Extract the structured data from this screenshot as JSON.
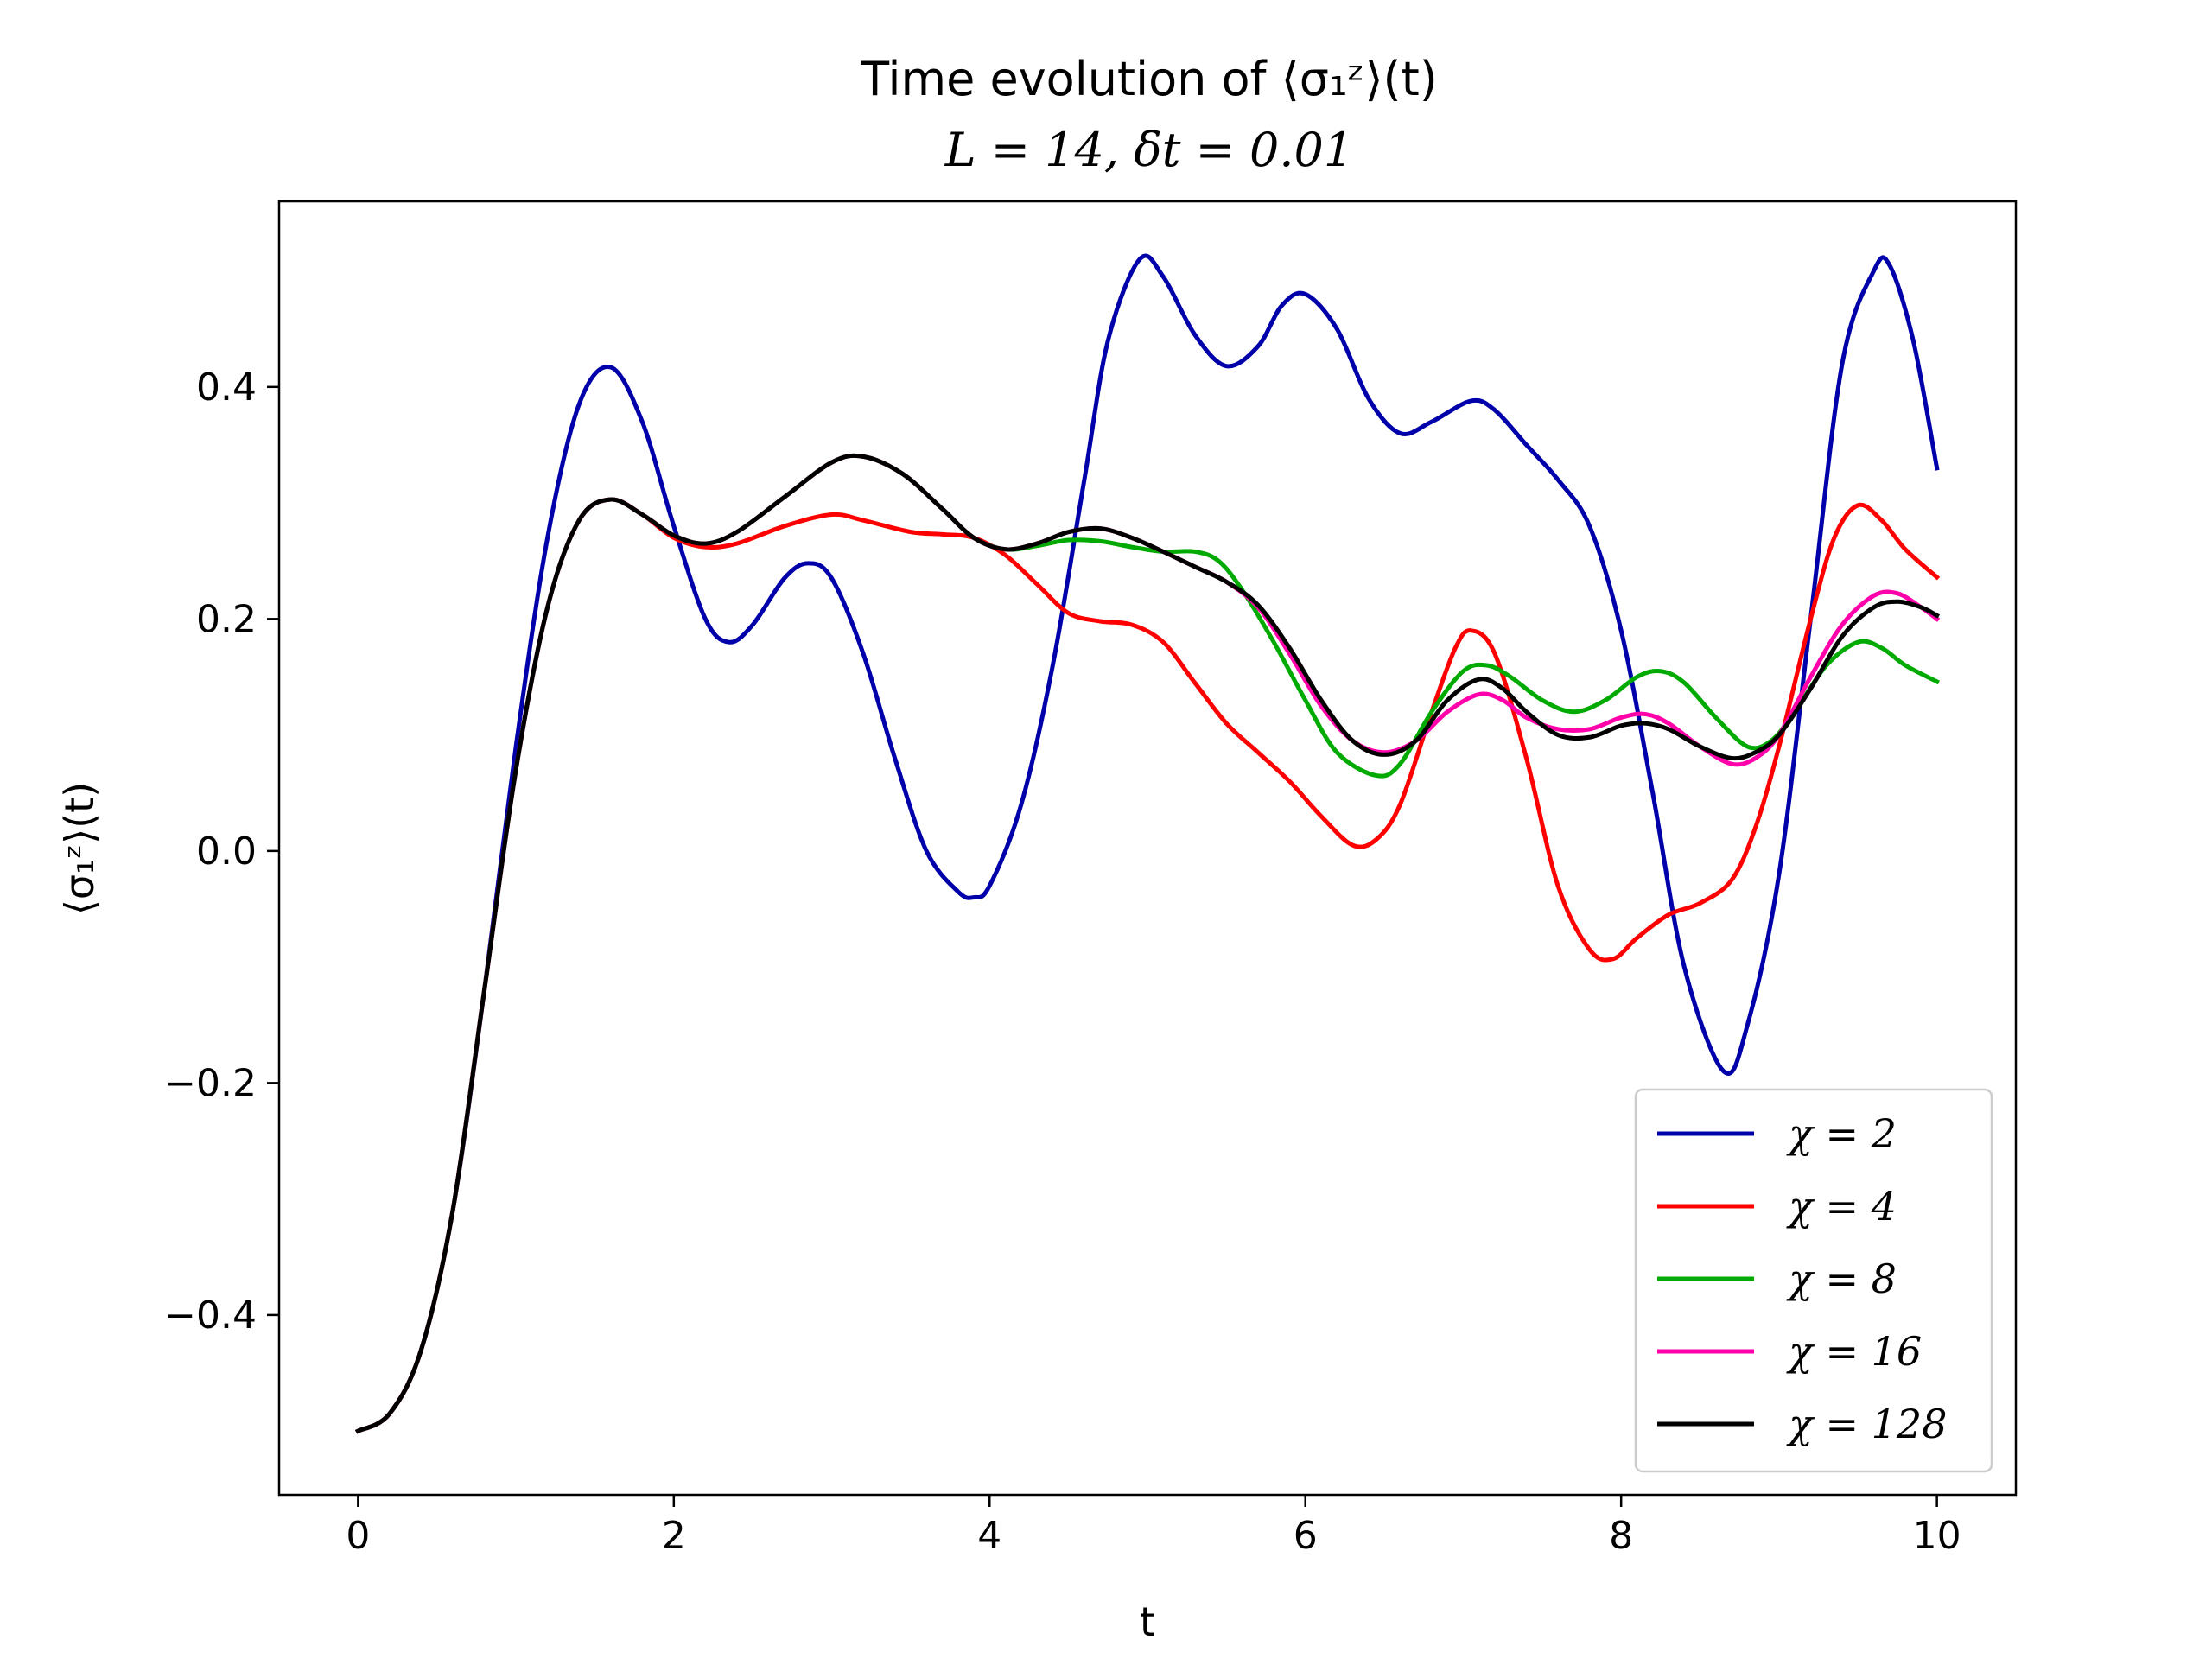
{
  "chart_data": {
    "type": "line",
    "title": "Time evolution of ⟨σ₁ᶻ⟩(t)",
    "subtitle": "L = 14, δt = 0.01",
    "xlabel": "t",
    "ylabel": "⟨σ₁ᶻ⟩(t)",
    "xlim": [
      -0.5,
      10.5
    ],
    "ylim": [
      -0.555,
      0.56
    ],
    "xticks": [
      0,
      2,
      4,
      6,
      8,
      10
    ],
    "xtick_labels": [
      "0",
      "2",
      "4",
      "6",
      "8",
      "10"
    ],
    "yticks": [
      -0.4,
      -0.2,
      0.0,
      0.2,
      0.4
    ],
    "ytick_labels": [
      "−0.4",
      "−0.2",
      "0.0",
      "0.2",
      "0.4"
    ],
    "grid": false,
    "legend_position": "lower-right",
    "series": [
      {
        "name": "χ = 2",
        "color": "#0000aa",
        "points": [
          [
            0,
            -0.5
          ],
          [
            0.2,
            -0.485
          ],
          [
            0.4,
            -0.43
          ],
          [
            0.6,
            -0.31
          ],
          [
            0.8,
            -0.12
          ],
          [
            1.0,
            0.09
          ],
          [
            1.2,
            0.27
          ],
          [
            1.4,
            0.385
          ],
          [
            1.6,
            0.417
          ],
          [
            1.8,
            0.37
          ],
          [
            2.0,
            0.28
          ],
          [
            2.2,
            0.2
          ],
          [
            2.35,
            0.18
          ],
          [
            2.5,
            0.195
          ],
          [
            2.7,
            0.235
          ],
          [
            2.85,
            0.248
          ],
          [
            3.0,
            0.235
          ],
          [
            3.2,
            0.17
          ],
          [
            3.4,
            0.08
          ],
          [
            3.6,
            0.0
          ],
          [
            3.8,
            -0.035
          ],
          [
            3.9,
            -0.04
          ],
          [
            4.0,
            -0.03
          ],
          [
            4.2,
            0.04
          ],
          [
            4.4,
            0.16
          ],
          [
            4.6,
            0.32
          ],
          [
            4.75,
            0.44
          ],
          [
            4.95,
            0.51
          ],
          [
            5.1,
            0.495
          ],
          [
            5.3,
            0.445
          ],
          [
            5.5,
            0.418
          ],
          [
            5.7,
            0.435
          ],
          [
            5.85,
            0.47
          ],
          [
            6.0,
            0.48
          ],
          [
            6.2,
            0.45
          ],
          [
            6.4,
            0.39
          ],
          [
            6.6,
            0.36
          ],
          [
            6.8,
            0.37
          ],
          [
            7.05,
            0.388
          ],
          [
            7.2,
            0.38
          ],
          [
            7.4,
            0.35
          ],
          [
            7.6,
            0.32
          ],
          [
            7.8,
            0.28
          ],
          [
            8.0,
            0.19
          ],
          [
            8.2,
            0.05
          ],
          [
            8.4,
            -0.1
          ],
          [
            8.65,
            -0.19
          ],
          [
            8.8,
            -0.15
          ],
          [
            9.0,
            -0.02
          ],
          [
            9.2,
            0.2
          ],
          [
            9.4,
            0.42
          ],
          [
            9.6,
            0.5
          ],
          [
            9.7,
            0.505
          ],
          [
            9.85,
            0.44
          ],
          [
            10.0,
            0.33
          ]
        ]
      },
      {
        "name": "χ = 4",
        "color": "#ff0000",
        "points": [
          [
            0,
            -0.5
          ],
          [
            0.2,
            -0.485
          ],
          [
            0.4,
            -0.43
          ],
          [
            0.6,
            -0.31
          ],
          [
            0.8,
            -0.12
          ],
          [
            1.0,
            0.07
          ],
          [
            1.2,
            0.21
          ],
          [
            1.4,
            0.285
          ],
          [
            1.6,
            0.303
          ],
          [
            1.8,
            0.29
          ],
          [
            2.0,
            0.27
          ],
          [
            2.2,
            0.262
          ],
          [
            2.4,
            0.265
          ],
          [
            2.7,
            0.28
          ],
          [
            3.0,
            0.29
          ],
          [
            3.2,
            0.285
          ],
          [
            3.5,
            0.275
          ],
          [
            3.7,
            0.273
          ],
          [
            3.9,
            0.27
          ],
          [
            4.1,
            0.255
          ],
          [
            4.3,
            0.23
          ],
          [
            4.5,
            0.205
          ],
          [
            4.7,
            0.198
          ],
          [
            4.9,
            0.195
          ],
          [
            5.1,
            0.18
          ],
          [
            5.3,
            0.145
          ],
          [
            5.5,
            0.11
          ],
          [
            5.7,
            0.085
          ],
          [
            5.9,
            0.06
          ],
          [
            6.1,
            0.03
          ],
          [
            6.3,
            0.005
          ],
          [
            6.45,
            0.01
          ],
          [
            6.6,
            0.04
          ],
          [
            6.8,
            0.12
          ],
          [
            6.95,
            0.175
          ],
          [
            7.05,
            0.19
          ],
          [
            7.2,
            0.17
          ],
          [
            7.4,
            0.08
          ],
          [
            7.6,
            -0.03
          ],
          [
            7.8,
            -0.085
          ],
          [
            7.95,
            -0.093
          ],
          [
            8.1,
            -0.075
          ],
          [
            8.3,
            -0.055
          ],
          [
            8.5,
            -0.045
          ],
          [
            8.7,
            -0.025
          ],
          [
            8.85,
            0.02
          ],
          [
            9.0,
            0.09
          ],
          [
            9.2,
            0.2
          ],
          [
            9.35,
            0.27
          ],
          [
            9.5,
            0.298
          ],
          [
            9.65,
            0.285
          ],
          [
            9.8,
            0.26
          ],
          [
            10.0,
            0.236
          ]
        ]
      },
      {
        "name": "χ = 8",
        "color": "#00aa00",
        "points": [
          [
            0,
            -0.5
          ],
          [
            0.2,
            -0.485
          ],
          [
            0.4,
            -0.43
          ],
          [
            0.6,
            -0.31
          ],
          [
            0.8,
            -0.12
          ],
          [
            1.0,
            0.07
          ],
          [
            1.2,
            0.21
          ],
          [
            1.4,
            0.285
          ],
          [
            1.6,
            0.303
          ],
          [
            1.8,
            0.29
          ],
          [
            2.0,
            0.272
          ],
          [
            2.2,
            0.265
          ],
          [
            2.4,
            0.275
          ],
          [
            2.7,
            0.305
          ],
          [
            3.0,
            0.335
          ],
          [
            3.2,
            0.34
          ],
          [
            3.45,
            0.325
          ],
          [
            3.7,
            0.295
          ],
          [
            3.9,
            0.27
          ],
          [
            4.1,
            0.26
          ],
          [
            4.3,
            0.263
          ],
          [
            4.5,
            0.268
          ],
          [
            4.7,
            0.267
          ],
          [
            4.9,
            0.262
          ],
          [
            5.1,
            0.258
          ],
          [
            5.3,
            0.258
          ],
          [
            5.45,
            0.25
          ],
          [
            5.6,
            0.225
          ],
          [
            5.8,
            0.18
          ],
          [
            6.0,
            0.13
          ],
          [
            6.2,
            0.085
          ],
          [
            6.45,
            0.065
          ],
          [
            6.6,
            0.075
          ],
          [
            6.8,
            0.12
          ],
          [
            7.0,
            0.155
          ],
          [
            7.15,
            0.16
          ],
          [
            7.3,
            0.15
          ],
          [
            7.5,
            0.13
          ],
          [
            7.7,
            0.12
          ],
          [
            7.9,
            0.13
          ],
          [
            8.1,
            0.15
          ],
          [
            8.25,
            0.155
          ],
          [
            8.4,
            0.145
          ],
          [
            8.6,
            0.115
          ],
          [
            8.8,
            0.09
          ],
          [
            8.95,
            0.095
          ],
          [
            9.1,
            0.12
          ],
          [
            9.3,
            0.16
          ],
          [
            9.5,
            0.18
          ],
          [
            9.65,
            0.175
          ],
          [
            9.8,
            0.16
          ],
          [
            10.0,
            0.146
          ]
        ]
      },
      {
        "name": "χ = 16",
        "color": "#ff00aa",
        "points": [
          [
            0,
            -0.5
          ],
          [
            0.2,
            -0.485
          ],
          [
            0.4,
            -0.43
          ],
          [
            0.6,
            -0.31
          ],
          [
            0.8,
            -0.12
          ],
          [
            1.0,
            0.07
          ],
          [
            1.2,
            0.21
          ],
          [
            1.4,
            0.285
          ],
          [
            1.6,
            0.303
          ],
          [
            1.8,
            0.29
          ],
          [
            2.0,
            0.272
          ],
          [
            2.2,
            0.265
          ],
          [
            2.4,
            0.275
          ],
          [
            2.7,
            0.305
          ],
          [
            3.0,
            0.335
          ],
          [
            3.2,
            0.34
          ],
          [
            3.45,
            0.325
          ],
          [
            3.7,
            0.295
          ],
          [
            3.9,
            0.27
          ],
          [
            4.1,
            0.26
          ],
          [
            4.3,
            0.265
          ],
          [
            4.5,
            0.275
          ],
          [
            4.7,
            0.278
          ],
          [
            4.9,
            0.27
          ],
          [
            5.1,
            0.258
          ],
          [
            5.3,
            0.245
          ],
          [
            5.5,
            0.232
          ],
          [
            5.7,
            0.21
          ],
          [
            5.9,
            0.17
          ],
          [
            6.1,
            0.125
          ],
          [
            6.3,
            0.095
          ],
          [
            6.5,
            0.085
          ],
          [
            6.7,
            0.095
          ],
          [
            6.9,
            0.12
          ],
          [
            7.1,
            0.135
          ],
          [
            7.25,
            0.13
          ],
          [
            7.4,
            0.115
          ],
          [
            7.6,
            0.105
          ],
          [
            7.8,
            0.105
          ],
          [
            8.0,
            0.115
          ],
          [
            8.15,
            0.118
          ],
          [
            8.3,
            0.11
          ],
          [
            8.5,
            0.09
          ],
          [
            8.7,
            0.075
          ],
          [
            8.85,
            0.08
          ],
          [
            9.0,
            0.1
          ],
          [
            9.2,
            0.15
          ],
          [
            9.4,
            0.195
          ],
          [
            9.6,
            0.22
          ],
          [
            9.75,
            0.222
          ],
          [
            9.9,
            0.21
          ],
          [
            10.0,
            0.2
          ]
        ]
      },
      {
        "name": "χ = 128",
        "color": "#000000",
        "points": [
          [
            0,
            -0.5
          ],
          [
            0.2,
            -0.485
          ],
          [
            0.4,
            -0.43
          ],
          [
            0.6,
            -0.31
          ],
          [
            0.8,
            -0.12
          ],
          [
            1.0,
            0.07
          ],
          [
            1.2,
            0.21
          ],
          [
            1.4,
            0.285
          ],
          [
            1.6,
            0.303
          ],
          [
            1.8,
            0.29
          ],
          [
            2.0,
            0.272
          ],
          [
            2.2,
            0.265
          ],
          [
            2.4,
            0.275
          ],
          [
            2.7,
            0.305
          ],
          [
            3.0,
            0.335
          ],
          [
            3.2,
            0.34
          ],
          [
            3.45,
            0.325
          ],
          [
            3.7,
            0.295
          ],
          [
            3.9,
            0.27
          ],
          [
            4.1,
            0.26
          ],
          [
            4.3,
            0.265
          ],
          [
            4.5,
            0.275
          ],
          [
            4.7,
            0.278
          ],
          [
            4.9,
            0.27
          ],
          [
            5.1,
            0.258
          ],
          [
            5.3,
            0.245
          ],
          [
            5.5,
            0.232
          ],
          [
            5.7,
            0.212
          ],
          [
            5.9,
            0.175
          ],
          [
            6.1,
            0.13
          ],
          [
            6.3,
            0.095
          ],
          [
            6.5,
            0.083
          ],
          [
            6.7,
            0.095
          ],
          [
            6.9,
            0.13
          ],
          [
            7.1,
            0.148
          ],
          [
            7.25,
            0.14
          ],
          [
            7.4,
            0.12
          ],
          [
            7.6,
            0.1
          ],
          [
            7.8,
            0.098
          ],
          [
            8.0,
            0.108
          ],
          [
            8.15,
            0.11
          ],
          [
            8.3,
            0.105
          ],
          [
            8.5,
            0.09
          ],
          [
            8.7,
            0.08
          ],
          [
            8.85,
            0.085
          ],
          [
            9.0,
            0.1
          ],
          [
            9.2,
            0.14
          ],
          [
            9.4,
            0.185
          ],
          [
            9.6,
            0.21
          ],
          [
            9.75,
            0.215
          ],
          [
            9.9,
            0.21
          ],
          [
            10.0,
            0.203
          ]
        ]
      }
    ]
  }
}
